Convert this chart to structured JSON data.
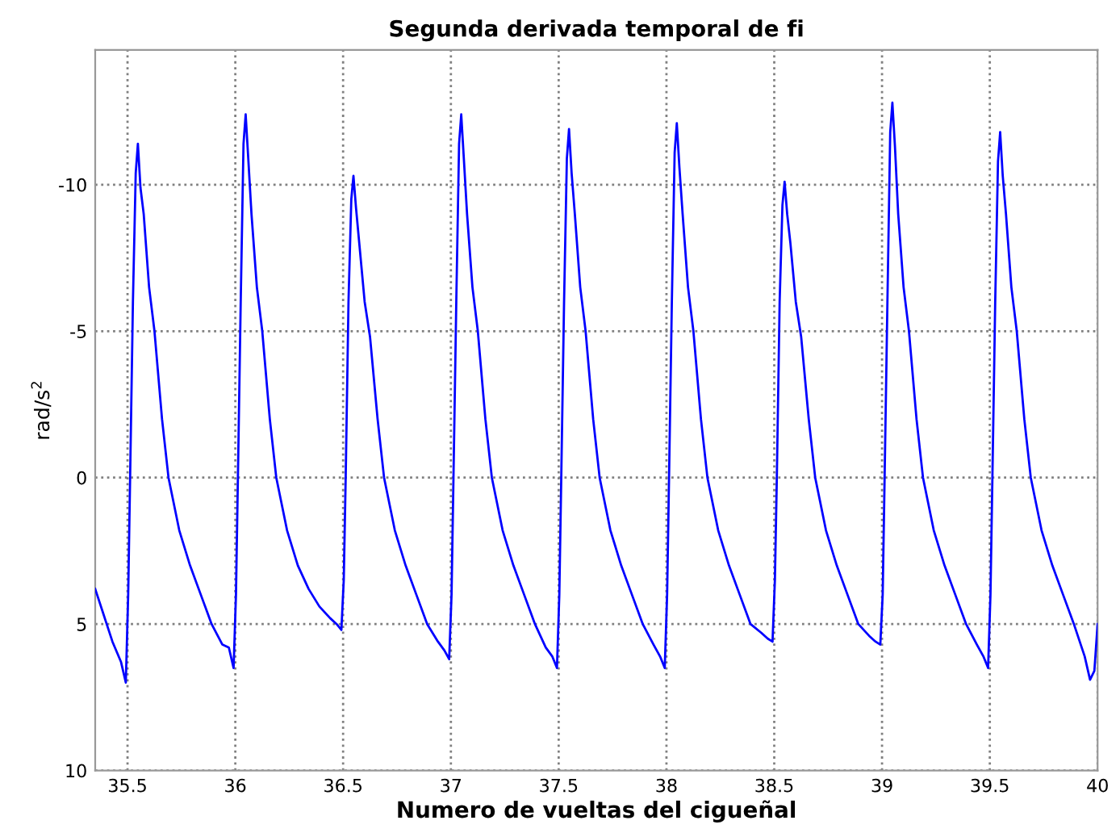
{
  "chart_data": {
    "type": "line",
    "title": "Segunda derivada temporal de fi",
    "xlabel": "Numero de vueltas del cigueñal",
    "ylabel": "rad/s$^{2}$",
    "xlim": [
      35.35,
      40
    ],
    "xticks": [
      35.5,
      36,
      36.5,
      37,
      37.5,
      38,
      38.5,
      39,
      39.5,
      40
    ],
    "ylim": [
      10,
      -14.6
    ],
    "yticks": [
      -10,
      -5,
      0,
      5,
      10
    ],
    "grid": true,
    "line_style": "solid",
    "marker": "none",
    "series": [
      {
        "color": "#0000ff",
        "x": [
          35.35,
          35.39,
          35.43,
          35.47,
          35.492,
          35.503,
          35.512,
          35.525,
          35.538,
          35.548,
          35.56,
          35.575,
          35.6,
          35.625,
          35.66,
          35.69,
          35.74,
          35.79,
          35.84,
          35.89,
          35.94,
          35.97,
          35.992,
          36.003,
          36.012,
          36.025,
          36.038,
          36.048,
          36.06,
          36.075,
          36.1,
          36.125,
          36.16,
          36.19,
          36.24,
          36.29,
          36.34,
          36.39,
          36.44,
          36.47,
          36.492,
          36.503,
          36.512,
          36.525,
          36.538,
          36.548,
          36.56,
          36.575,
          36.6,
          36.625,
          36.66,
          36.69,
          36.74,
          36.79,
          36.84,
          36.89,
          36.94,
          36.97,
          36.992,
          37.003,
          37.012,
          37.025,
          37.038,
          37.048,
          37.06,
          37.075,
          37.1,
          37.125,
          37.16,
          37.19,
          37.24,
          37.29,
          37.34,
          37.39,
          37.44,
          37.47,
          37.492,
          37.503,
          37.512,
          37.525,
          37.538,
          37.548,
          37.56,
          37.575,
          37.6,
          37.625,
          37.66,
          37.69,
          37.74,
          37.79,
          37.84,
          37.89,
          37.94,
          37.97,
          37.992,
          38.003,
          38.012,
          38.025,
          38.038,
          38.048,
          38.06,
          38.075,
          38.1,
          38.125,
          38.16,
          38.19,
          38.24,
          38.29,
          38.34,
          38.39,
          38.44,
          38.47,
          38.492,
          38.503,
          38.512,
          38.525,
          38.538,
          38.548,
          38.56,
          38.575,
          38.6,
          38.625,
          38.66,
          38.69,
          38.74,
          38.79,
          38.84,
          38.89,
          38.94,
          38.97,
          38.992,
          39.003,
          39.012,
          39.025,
          39.038,
          39.048,
          39.06,
          39.075,
          39.1,
          39.125,
          39.16,
          39.19,
          39.24,
          39.29,
          39.34,
          39.39,
          39.44,
          39.47,
          39.492,
          39.503,
          39.512,
          39.525,
          39.538,
          39.548,
          39.56,
          39.575,
          39.6,
          39.625,
          39.66,
          39.69,
          39.74,
          39.79,
          39.84,
          39.89,
          39.94,
          39.965,
          39.985,
          40.0
        ],
        "values": [
          3.8,
          4.7,
          5.6,
          6.3,
          7.0,
          4.0,
          0,
          -6,
          -10.4,
          -11.4,
          -9.9,
          -9,
          -6.5,
          -5,
          -2,
          0,
          1.8,
          3.0,
          4.0,
          5.0,
          5.7,
          5.8,
          6.5,
          4.0,
          0,
          -6,
          -11.4,
          -12.4,
          -10.9,
          -9,
          -6.5,
          -5,
          -2,
          0,
          1.8,
          3.0,
          3.8,
          4.4,
          4.8,
          5.0,
          5.2,
          3.5,
          0,
          -6,
          -9.5,
          -10.3,
          -9.2,
          -8,
          -6,
          -4.8,
          -2,
          0,
          1.8,
          3.0,
          4.0,
          5.0,
          5.6,
          5.9,
          6.2,
          4.0,
          0,
          -6,
          -11.4,
          -12.4,
          -10.9,
          -9,
          -6.5,
          -5,
          -2,
          0,
          1.8,
          3.0,
          4.0,
          5.0,
          5.8,
          6.1,
          6.5,
          4.0,
          0,
          -6,
          -10.9,
          -11.9,
          -10.4,
          -9,
          -6.5,
          -5,
          -2,
          0,
          1.8,
          3.0,
          4.0,
          5.0,
          5.7,
          6.1,
          6.5,
          4.0,
          0,
          -6,
          -11.1,
          -12.1,
          -10.6,
          -9,
          -6.5,
          -5,
          -2,
          0,
          1.8,
          3.0,
          4.0,
          5.0,
          5.3,
          5.5,
          5.6,
          3.5,
          0,
          -6,
          -9.3,
          -10.1,
          -9.0,
          -8,
          -6,
          -4.8,
          -2,
          0,
          1.8,
          3.0,
          4.0,
          5.0,
          5.4,
          5.6,
          5.7,
          4.0,
          0,
          -6,
          -11.8,
          -12.8,
          -11.3,
          -9,
          -6.5,
          -5,
          -2,
          0,
          1.8,
          3.0,
          4.0,
          5.0,
          5.7,
          6.1,
          6.5,
          4.0,
          0,
          -6,
          -10.8,
          -11.8,
          -10.3,
          -9,
          -6.5,
          -5,
          -2,
          0,
          1.8,
          3.0,
          4.0,
          5.0,
          6.1,
          6.9,
          6.6,
          5.0
        ]
      }
    ]
  }
}
